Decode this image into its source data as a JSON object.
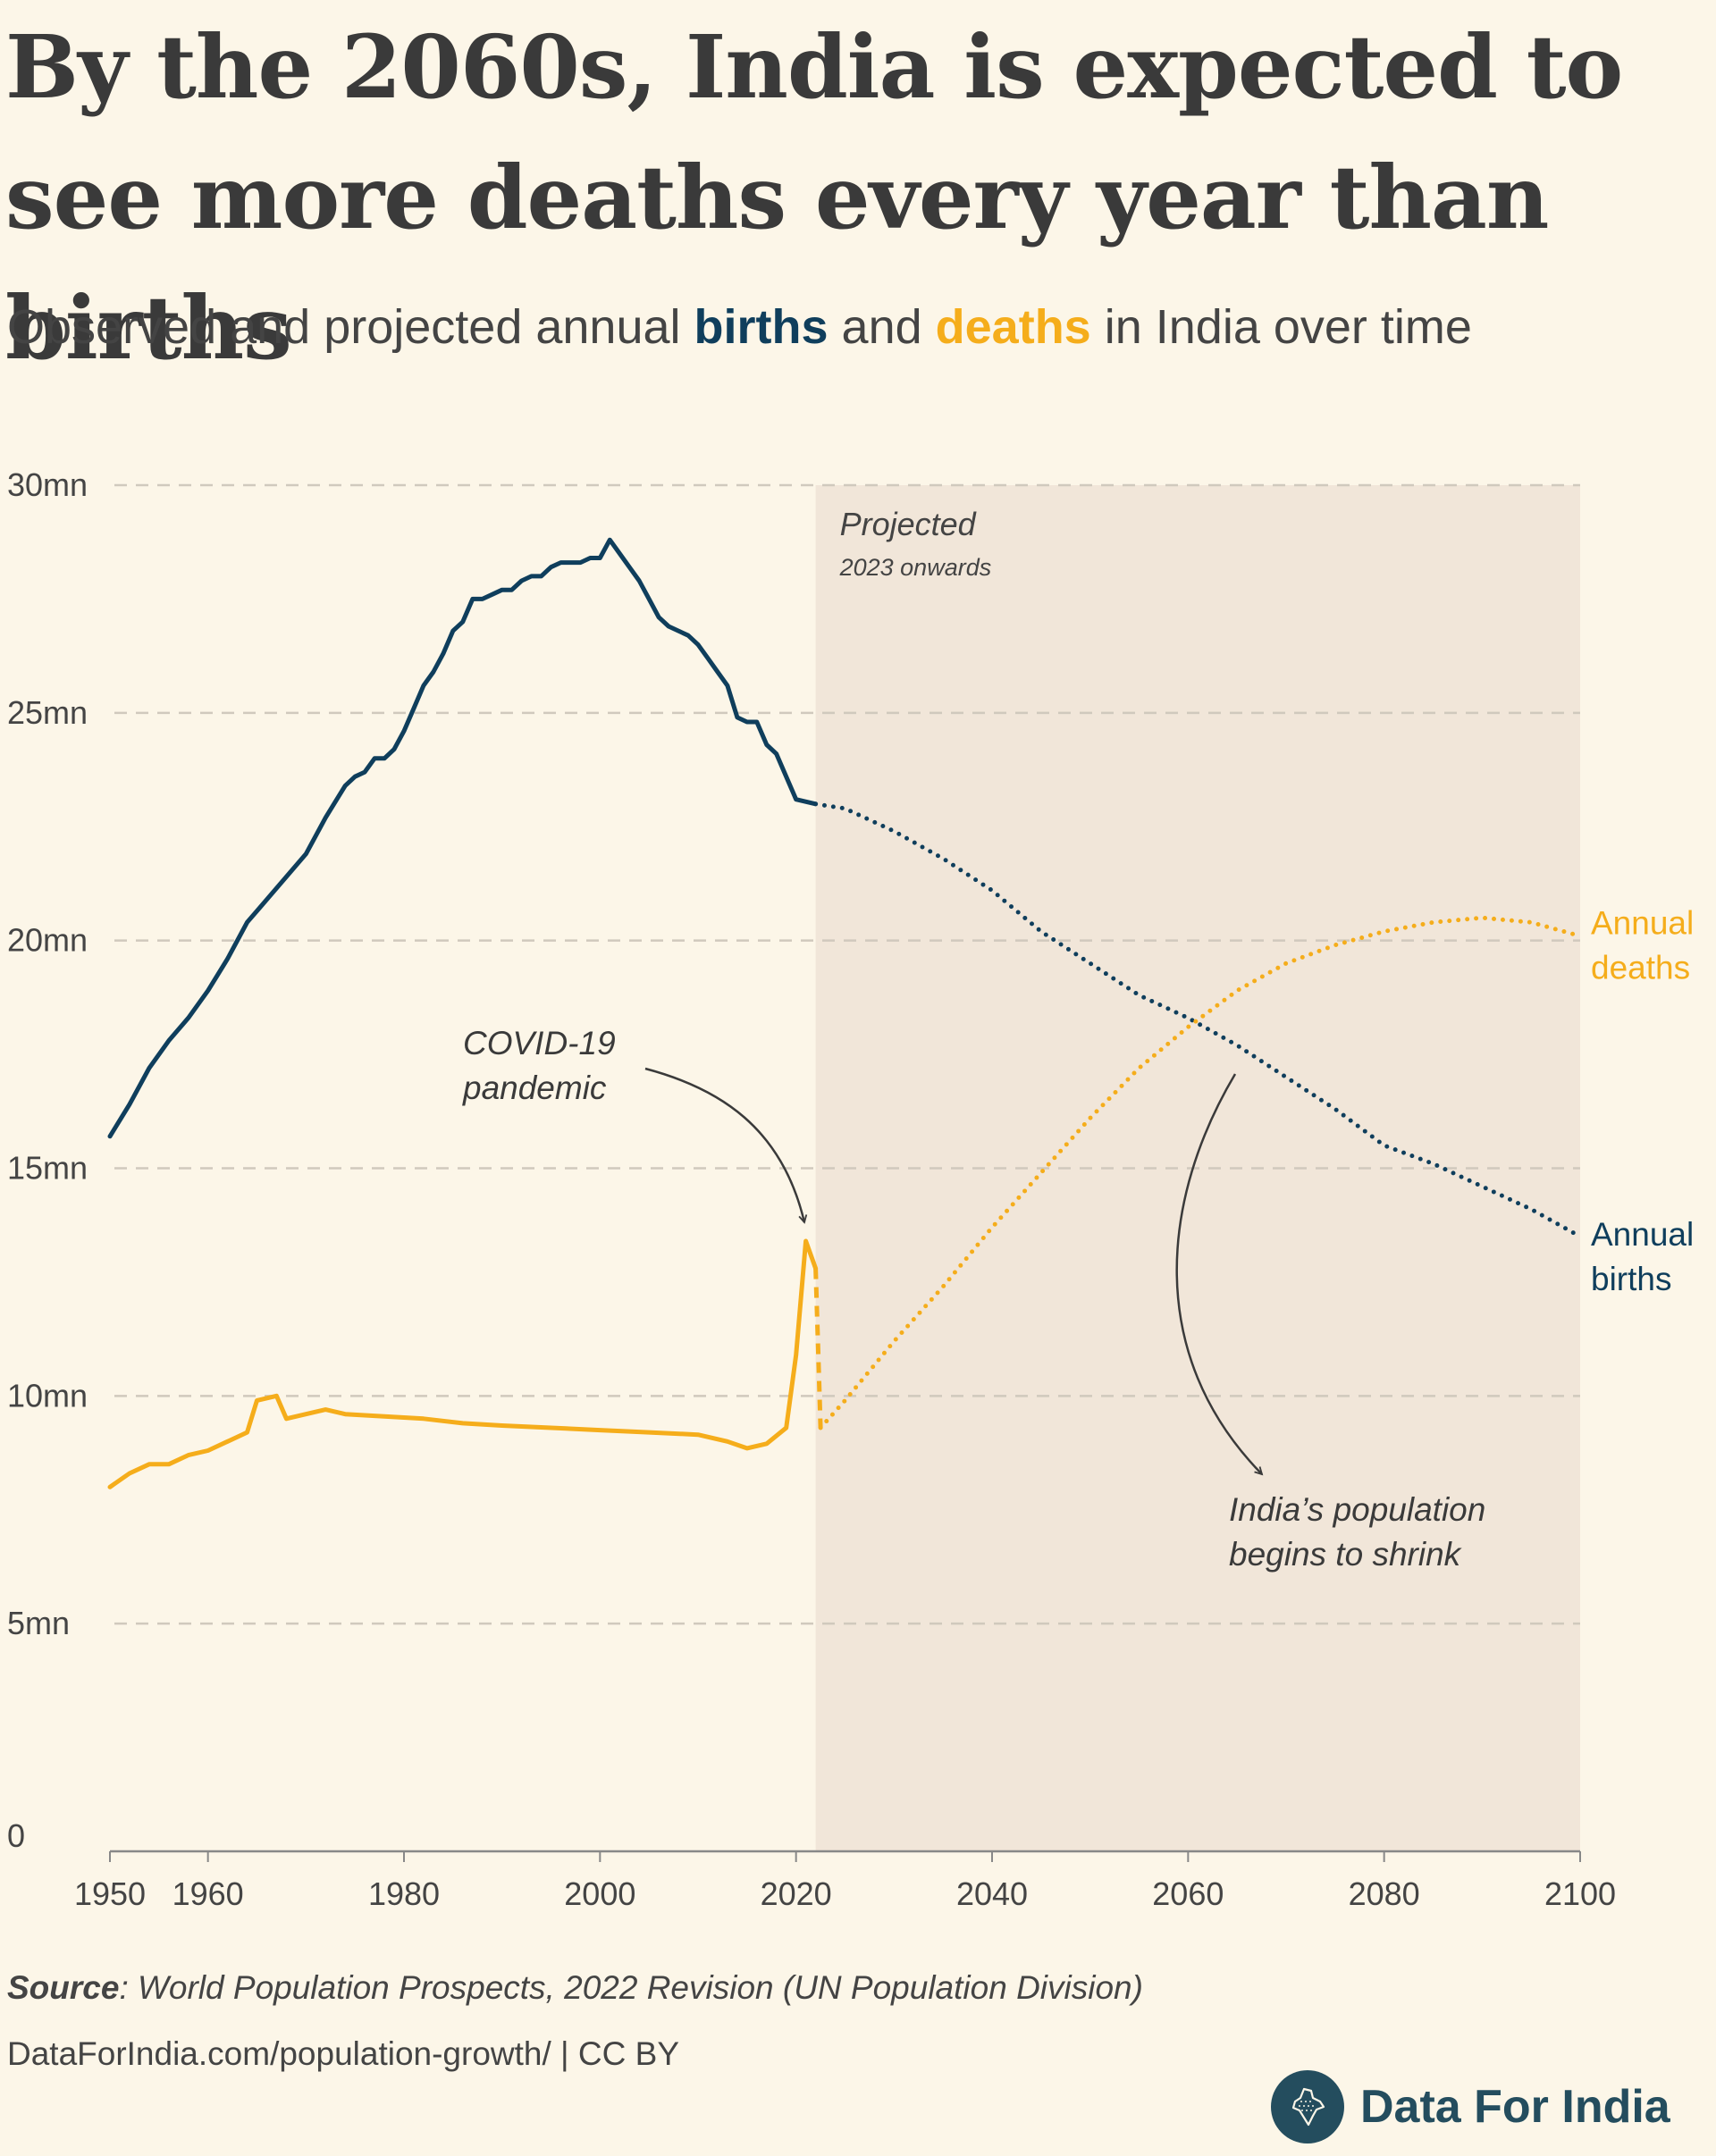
{
  "title": "By the 2060s, India is expected to see more deaths every year than births",
  "subtitle": {
    "prefix": "Observed and projected annual ",
    "births_word": "births",
    "middle": " and ",
    "deaths_word": "deaths",
    "suffix": " in India over time"
  },
  "colors": {
    "births": "#0f3e5c",
    "deaths": "#f5ad1b",
    "projected_band": "#f1e6d9",
    "grid": "#d0c9bd",
    "background": "#fcf6e8"
  },
  "chart_data": {
    "type": "line",
    "xlim": [
      1950,
      2100
    ],
    "ylim": [
      0,
      30
    ],
    "y_unit": "mn",
    "y_ticks": [
      {
        "value": 0,
        "label": "0"
      },
      {
        "value": 5,
        "label": "5mn"
      },
      {
        "value": 10,
        "label": "10mn"
      },
      {
        "value": 15,
        "label": "15mn"
      },
      {
        "value": 20,
        "label": "20mn"
      },
      {
        "value": 25,
        "label": "25mn"
      },
      {
        "value": 30,
        "label": "30mn"
      }
    ],
    "x_ticks": [
      1950,
      1960,
      1980,
      2000,
      2020,
      2040,
      2060,
      2080,
      2100
    ],
    "grid": true,
    "projection": {
      "start": 2022,
      "label": "Projected",
      "sublabel": "2023 onwards"
    },
    "series": [
      {
        "name": "Annual births",
        "color": "#0f3e5c",
        "observed": [
          [
            1950,
            15.7
          ],
          [
            1952,
            16.4
          ],
          [
            1954,
            17.2
          ],
          [
            1956,
            17.8
          ],
          [
            1958,
            18.3
          ],
          [
            1960,
            18.9
          ],
          [
            1962,
            19.6
          ],
          [
            1964,
            20.4
          ],
          [
            1966,
            20.9
          ],
          [
            1968,
            21.4
          ],
          [
            1970,
            21.9
          ],
          [
            1972,
            22.7
          ],
          [
            1974,
            23.4
          ],
          [
            1975,
            23.6
          ],
          [
            1976,
            23.7
          ],
          [
            1977,
            24.0
          ],
          [
            1978,
            24.0
          ],
          [
            1979,
            24.2
          ],
          [
            1980,
            24.6
          ],
          [
            1981,
            25.1
          ],
          [
            1982,
            25.6
          ],
          [
            1983,
            25.9
          ],
          [
            1984,
            26.3
          ],
          [
            1985,
            26.8
          ],
          [
            1986,
            27.0
          ],
          [
            1987,
            27.5
          ],
          [
            1988,
            27.5
          ],
          [
            1989,
            27.6
          ],
          [
            1990,
            27.7
          ],
          [
            1991,
            27.7
          ],
          [
            1992,
            27.9
          ],
          [
            1993,
            28.0
          ],
          [
            1994,
            28.0
          ],
          [
            1995,
            28.2
          ],
          [
            1996,
            28.3
          ],
          [
            1997,
            28.3
          ],
          [
            1998,
            28.3
          ],
          [
            1999,
            28.4
          ],
          [
            2000,
            28.4
          ],
          [
            2001,
            28.8
          ],
          [
            2002,
            28.5
          ],
          [
            2003,
            28.2
          ],
          [
            2004,
            27.9
          ],
          [
            2005,
            27.5
          ],
          [
            2006,
            27.1
          ],
          [
            2007,
            26.9
          ],
          [
            2008,
            26.8
          ],
          [
            2009,
            26.7
          ],
          [
            2010,
            26.5
          ],
          [
            2011,
            26.2
          ],
          [
            2012,
            25.9
          ],
          [
            2013,
            25.6
          ],
          [
            2014,
            24.9
          ],
          [
            2015,
            24.8
          ],
          [
            2016,
            24.8
          ],
          [
            2017,
            24.3
          ],
          [
            2018,
            24.1
          ],
          [
            2019,
            23.6
          ],
          [
            2020,
            23.1
          ],
          [
            2022,
            23.0
          ]
        ],
        "projected": [
          [
            2022,
            23.0
          ],
          [
            2025,
            22.9
          ],
          [
            2030,
            22.4
          ],
          [
            2035,
            21.8
          ],
          [
            2040,
            21.1
          ],
          [
            2045,
            20.2
          ],
          [
            2050,
            19.5
          ],
          [
            2055,
            18.8
          ],
          [
            2060,
            18.3
          ],
          [
            2065,
            17.7
          ],
          [
            2070,
            17.0
          ],
          [
            2075,
            16.3
          ],
          [
            2080,
            15.5
          ],
          [
            2085,
            15.1
          ],
          [
            2090,
            14.6
          ],
          [
            2095,
            14.1
          ],
          [
            2100,
            13.5
          ]
        ],
        "end_label": [
          "Annual",
          "births"
        ]
      },
      {
        "name": "Annual deaths",
        "color": "#f5ad1b",
        "observed": [
          [
            1950,
            8.0
          ],
          [
            1952,
            8.3
          ],
          [
            1954,
            8.5
          ],
          [
            1956,
            8.5
          ],
          [
            1958,
            8.7
          ],
          [
            1960,
            8.8
          ],
          [
            1962,
            9.0
          ],
          [
            1964,
            9.2
          ],
          [
            1965,
            9.9
          ],
          [
            1967,
            10.0
          ],
          [
            1968,
            9.5
          ],
          [
            1970,
            9.6
          ],
          [
            1972,
            9.7
          ],
          [
            1974,
            9.6
          ],
          [
            1978,
            9.55
          ],
          [
            1982,
            9.5
          ],
          [
            1986,
            9.4
          ],
          [
            1990,
            9.35
          ],
          [
            1995,
            9.3
          ],
          [
            2000,
            9.25
          ],
          [
            2005,
            9.2
          ],
          [
            2010,
            9.15
          ],
          [
            2013,
            9.0
          ],
          [
            2015,
            8.85
          ],
          [
            2017,
            8.95
          ],
          [
            2019,
            9.3
          ],
          [
            2020,
            10.9
          ],
          [
            2021,
            13.4
          ],
          [
            2022,
            12.8
          ]
        ],
        "transition": [
          [
            2022,
            12.8
          ],
          [
            2022.5,
            9.3
          ]
        ],
        "projected": [
          [
            2022.5,
            9.3
          ],
          [
            2025,
            9.9
          ],
          [
            2030,
            11.2
          ],
          [
            2035,
            12.4
          ],
          [
            2040,
            13.7
          ],
          [
            2045,
            14.9
          ],
          [
            2050,
            16.1
          ],
          [
            2055,
            17.2
          ],
          [
            2060,
            18.1
          ],
          [
            2065,
            18.9
          ],
          [
            2070,
            19.5
          ],
          [
            2075,
            19.9
          ],
          [
            2080,
            20.2
          ],
          [
            2085,
            20.4
          ],
          [
            2090,
            20.5
          ],
          [
            2095,
            20.4
          ],
          [
            2100,
            20.1
          ]
        ],
        "end_label": [
          "Annual",
          "deaths"
        ]
      }
    ],
    "annotations": [
      {
        "id": "covid",
        "lines": [
          "COVID-19",
          "pandemic"
        ]
      },
      {
        "id": "shrink",
        "lines": [
          "India’s population",
          "begins to shrink"
        ]
      }
    ]
  },
  "source": {
    "label": "Source",
    "text": ": World Population Prospects, 2022 Revision (UN Population Division)"
  },
  "credit": "DataForIndia.com/population-growth/  |  CC BY",
  "brand": {
    "name": "Data For India",
    "logo_icon": "india-map-logo-icon"
  }
}
